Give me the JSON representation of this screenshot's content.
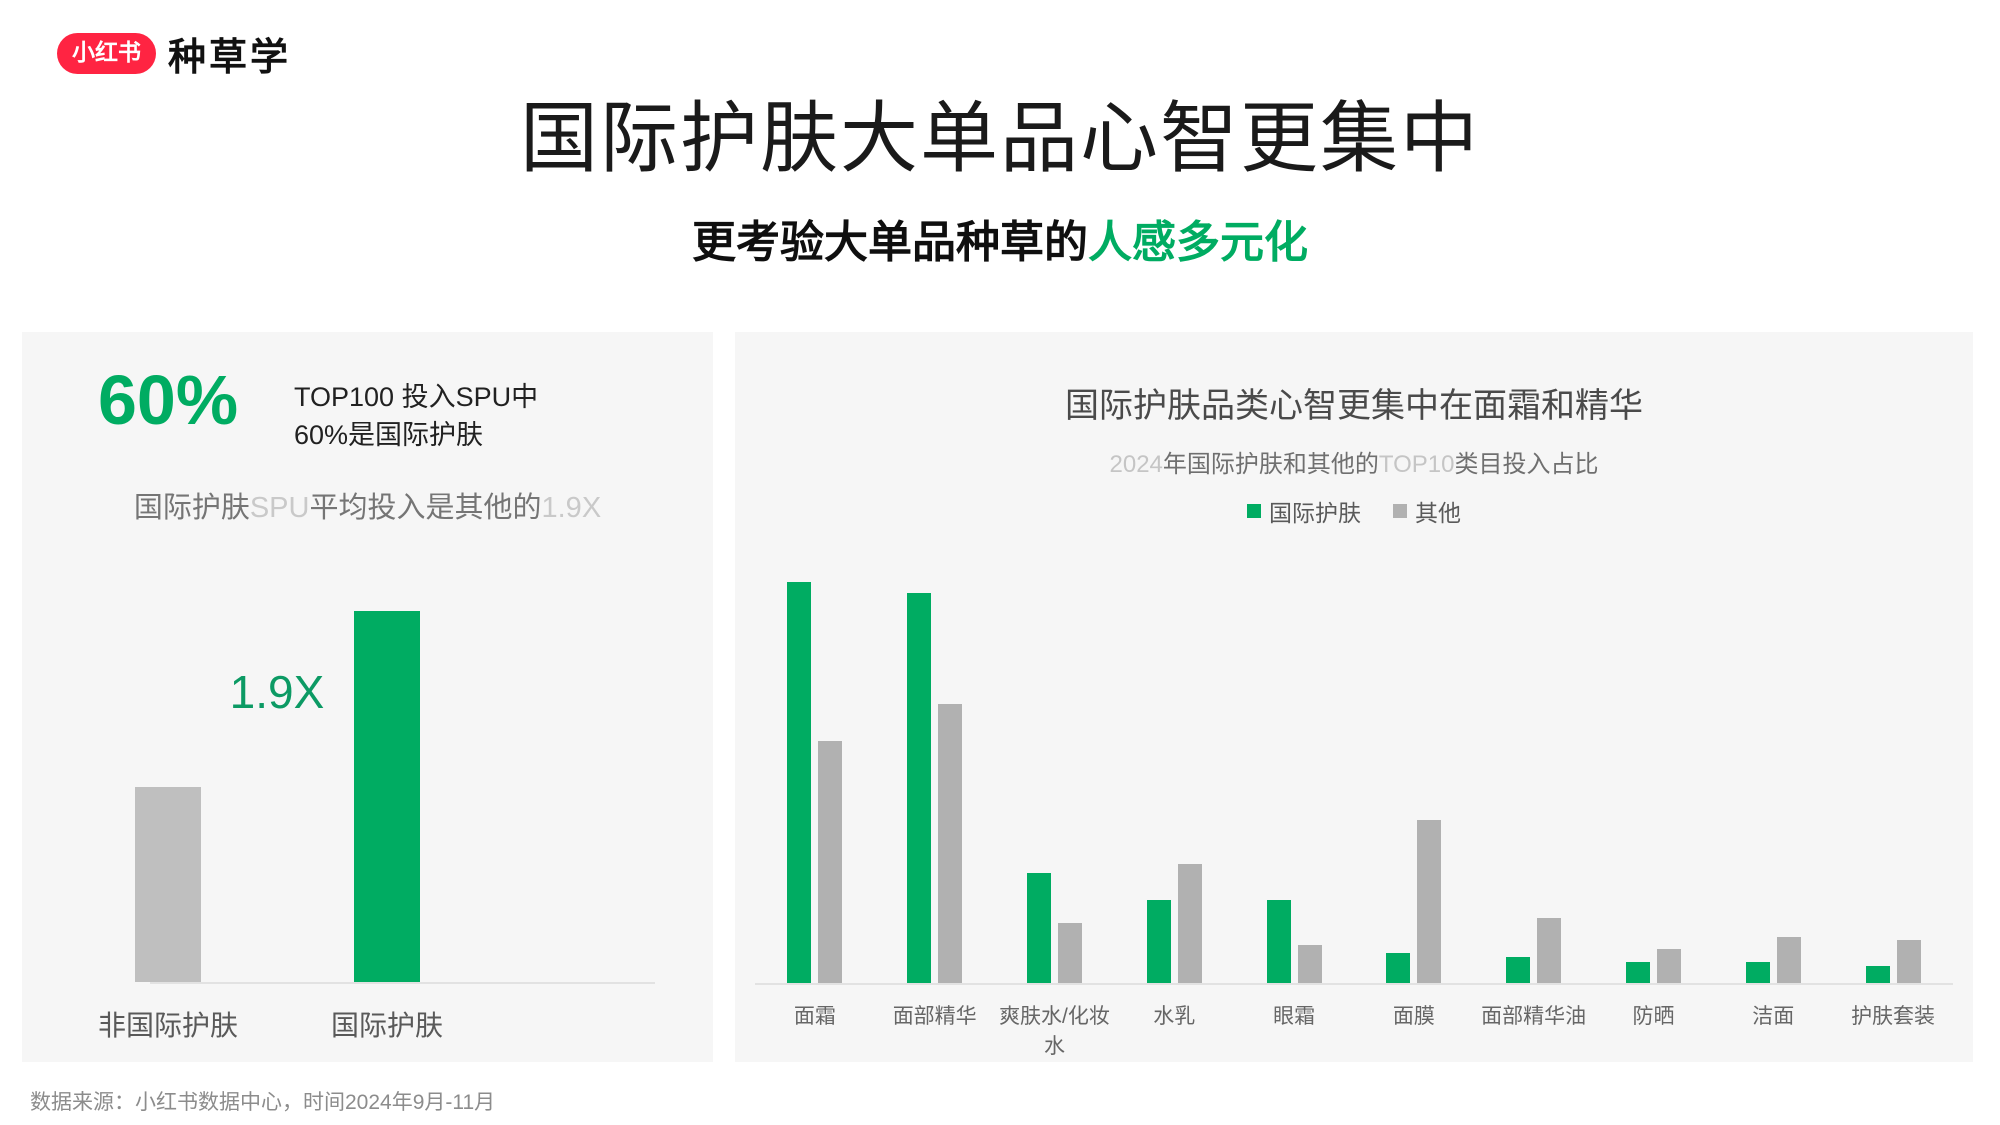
{
  "page": {
    "footer": "数据来源：小红书数据中心，时间2024年9月-11月"
  },
  "logo": {
    "badge": "小红书",
    "brand": "种草学",
    "badge_bg": "#FF2442"
  },
  "header": {
    "title": "国际护肤大单品心智更集中",
    "subtitle_black": "更考验大单品种草的",
    "subtitle_green": "人感多元化"
  },
  "colors": {
    "accent_green": "#00AC62",
    "deep_green": "#0C9A64",
    "brand_red": "#FF2442",
    "left_gray_bar": "#BFBFBF",
    "right_gray_bar": "#B1B1B1",
    "panel_background": "#F6F6F6",
    "axis_line": "#E2E2E2"
  },
  "left_panel": {
    "stat_value": "60%",
    "stat_desc_line1": "TOP100 投入SPU中",
    "stat_desc_line2": "60%是国际护肤",
    "note_part1": "国际护肤",
    "note_part2": "SPU",
    "note_part3": "平均投入是其他的",
    "note_part4": "1.9X",
    "multiplier_label": "1.9X"
  },
  "right_panel": {
    "subtitle_p1": "2024",
    "subtitle_p2": "年国际护肤和其他的",
    "subtitle_p3": "TOP10",
    "subtitle_p4": "类目投入占比"
  },
  "chart_data": [
    {
      "type": "bar",
      "title": "国际护肤SPU平均投入是其他的1.9X",
      "categories": [
        "非国际护肤",
        "国际护肤"
      ],
      "values": [
        1,
        1.9
      ],
      "colors": [
        "#BFBFBF",
        "#00AC62"
      ],
      "annotation": "1.9X",
      "ylim": [
        0,
        2
      ],
      "grid": false,
      "legend_position": "none"
    },
    {
      "type": "bar",
      "title": "国际护肤品类心智更集中在面霜和精华",
      "subtitle": "2024年国际护肤和其他的TOP10类目投入占比",
      "categories": [
        "面霜",
        "面部精华",
        "爽肤水/化妆水",
        "水乳",
        "眼霜",
        "面膜",
        "面部精华油",
        "防晒",
        "洁面",
        "护肤套装"
      ],
      "series": [
        {
          "name": "国际护肤",
          "color": "#00AC62",
          "values": [
            34,
            33,
            9.3,
            7.0,
            7.0,
            2.5,
            2.2,
            1.8,
            1.8,
            1.4
          ]
        },
        {
          "name": "其他",
          "color": "#B1B1B1",
          "values": [
            20.5,
            23.6,
            5.1,
            10.1,
            3.2,
            13.8,
            5.5,
            2.9,
            3.9,
            3.6
          ]
        }
      ],
      "ylabel": "",
      "xlabel": "",
      "ylim": [
        0,
        36
      ],
      "grid": false,
      "legend_position": "top-center"
    }
  ]
}
